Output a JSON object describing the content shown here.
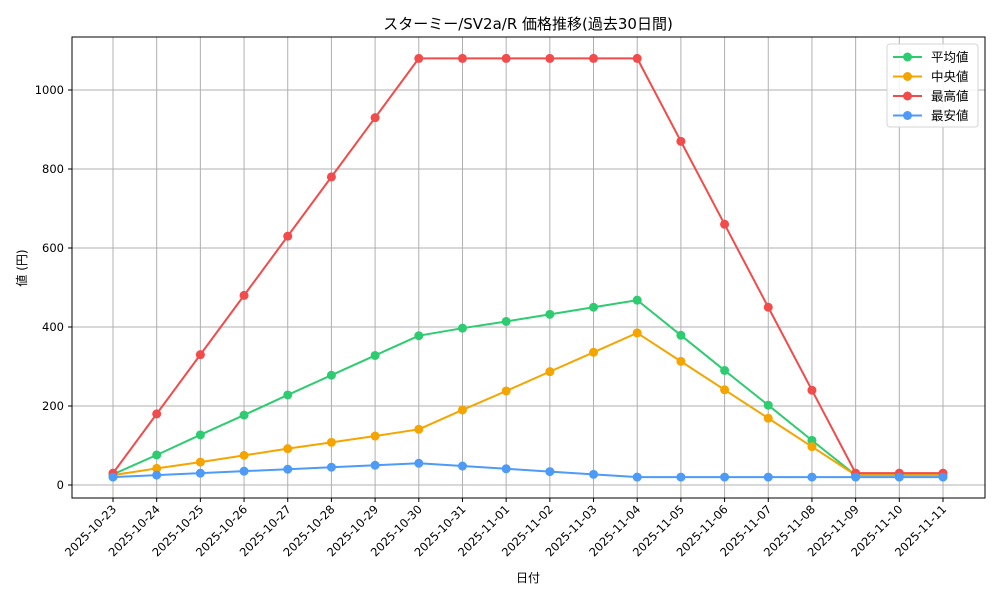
{
  "chart_data": {
    "type": "line",
    "title": "スターミー/SV2a/R 価格推移(過去30日間)",
    "xlabel": "日付",
    "ylabel": "値 (円)",
    "ylim": [
      -35,
      1135
    ],
    "yticks": [
      0,
      200,
      400,
      600,
      800,
      1000
    ],
    "grid": true,
    "legend_position": "upper right",
    "markers": true,
    "categories": [
      "2025-10-23",
      "2025-10-24",
      "2025-10-25",
      "2025-10-26",
      "2025-10-27",
      "2025-10-28",
      "2025-10-29",
      "2025-10-30",
      "2025-10-31",
      "2025-11-01",
      "2025-11-02",
      "2025-11-03",
      "2025-11-04",
      "2025-11-05",
      "2025-11-06",
      "2025-11-07",
      "2025-11-08",
      "2025-11-09",
      "2025-11-10",
      "2025-11-11"
    ],
    "series": [
      {
        "name": "平均値",
        "color": "#2ecc71",
        "values": [
          27,
          76,
          127,
          177,
          228,
          278,
          328,
          378,
          397,
          414,
          432,
          450,
          468,
          379,
          290,
          202,
          113,
          25,
          25,
          25
        ]
      },
      {
        "name": "中央値",
        "color": "#f5a500",
        "values": [
          25,
          42,
          58,
          75,
          92,
          108,
          124,
          141,
          190,
          238,
          287,
          336,
          385,
          313,
          241,
          169,
          97,
          25,
          25,
          25
        ]
      },
      {
        "name": "最高値",
        "color": "#f24b4b",
        "values": [
          30,
          180,
          330,
          480,
          630,
          780,
          930,
          1080,
          1080,
          1080,
          1080,
          1080,
          1080,
          870,
          660,
          450,
          240,
          30,
          30,
          30
        ]
      },
      {
        "name": "最安値",
        "color": "#4d9bf7",
        "values": [
          20,
          25,
          30,
          35,
          40,
          45,
          50,
          55,
          48,
          41,
          34,
          27,
          20,
          20,
          20,
          20,
          20,
          20,
          20,
          20
        ]
      }
    ]
  }
}
